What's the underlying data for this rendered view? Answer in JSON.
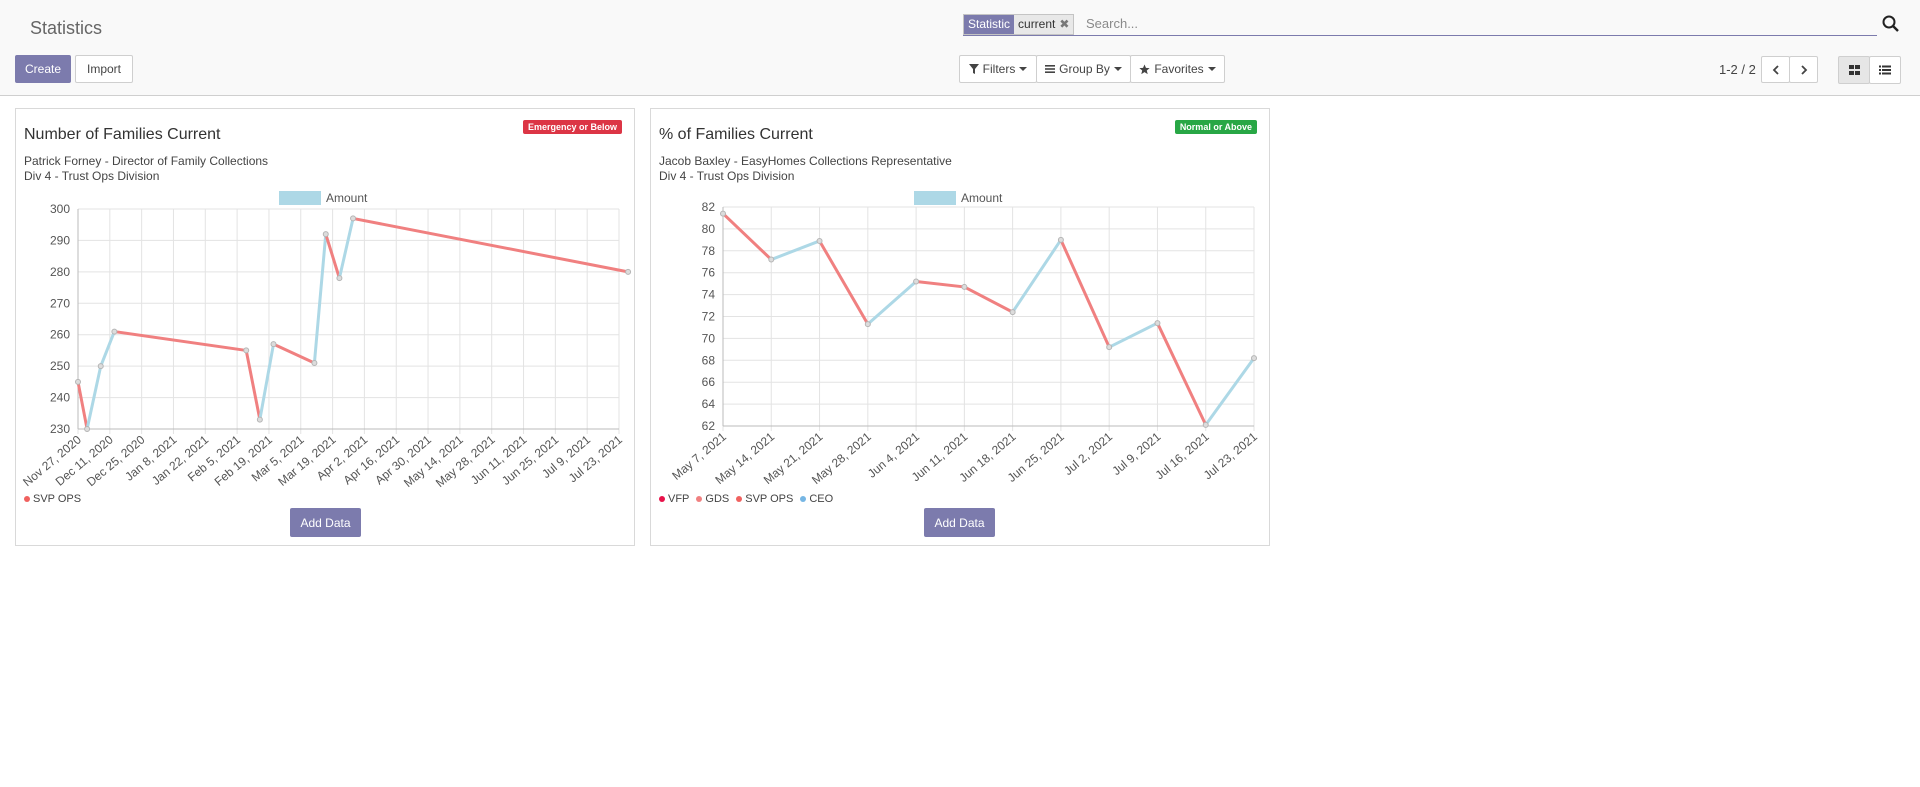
{
  "page": {
    "title": "Statistics"
  },
  "search": {
    "facet_label": "Statistic",
    "facet_value": "current",
    "placeholder": "Search..."
  },
  "toolbar": {
    "create": "Create",
    "import": "Import",
    "filters": "Filters",
    "group_by": "Group By",
    "favorites": "Favorites"
  },
  "pager": {
    "text": "1-2 / 2"
  },
  "colors": {
    "accent": "#7c7bad",
    "red_line": "#f08080",
    "blue_line": "#add8e6",
    "danger": "#dc3545",
    "success": "#28a745"
  },
  "cards": [
    {
      "title": "Number of Families Current",
      "person": "Patrick Forney - Director of Family Collections",
      "division": "Div 4 - Trust Ops Division",
      "badge": "Emergency or Below",
      "badge_color": "#dc3545",
      "legend_top": "Amount",
      "bottom_legend": [
        {
          "name": "SVP OPS",
          "color": "#f0615f"
        }
      ],
      "add_button": "Add Data"
    },
    {
      "title": "% of Families Current",
      "person": "Jacob Baxley - EasyHomes Collections Representative",
      "division": "Div 4 - Trust Ops Division",
      "badge": "Normal or Above",
      "badge_color": "#28a745",
      "legend_top": "Amount",
      "bottom_legend": [
        {
          "name": "VFP",
          "color": "#e8124a"
        },
        {
          "name": "GDS",
          "color": "#f08080"
        },
        {
          "name": "SVP OPS",
          "color": "#f0615f"
        },
        {
          "name": "CEO",
          "color": "#76b6e4"
        }
      ],
      "add_button": "Add Data"
    }
  ],
  "chart_data": [
    {
      "type": "line",
      "legend": [
        "Amount"
      ],
      "ylim": [
        230,
        300
      ],
      "yticks": [
        "230",
        "240",
        "250",
        "260",
        "270",
        "280",
        "290",
        "300"
      ],
      "xticks": [
        "Nov 27, 2020",
        "Dec 11, 2020",
        "Dec 25, 2020",
        "Jan 8, 2021",
        "Jan 22, 2021",
        "Feb 5, 2021",
        "Feb 19, 2021",
        "Mar 5, 2021",
        "Mar 19, 2021",
        "Apr 2, 2021",
        "Apr 16, 2021",
        "Apr 30, 2021",
        "May 14, 2021",
        "May 28, 2021",
        "Jun 11, 2021",
        "Jun 25, 2021",
        "Jul 9, 2021",
        "Jul 23, 2021"
      ],
      "grid": true,
      "points": [
        {
          "x": "2020-11-27",
          "y": 245
        },
        {
          "x": "2020-12-01",
          "y": 230
        },
        {
          "x": "2020-12-07",
          "y": 250
        },
        {
          "x": "2020-12-13",
          "y": 261
        },
        {
          "x": "2021-02-09",
          "y": 255
        },
        {
          "x": "2021-02-15",
          "y": 233
        },
        {
          "x": "2021-02-21",
          "y": 257
        },
        {
          "x": "2021-03-11",
          "y": 251
        },
        {
          "x": "2021-03-16",
          "y": 292
        },
        {
          "x": "2021-03-22",
          "y": 278
        },
        {
          "x": "2021-03-28",
          "y": 297
        },
        {
          "x": "2021-07-27",
          "y": 280
        }
      ],
      "segment_colors": [
        "red",
        "blue",
        "blue",
        "red",
        "red",
        "blue",
        "red",
        "blue",
        "red",
        "blue",
        "red"
      ]
    },
    {
      "type": "line",
      "legend": [
        "Amount"
      ],
      "ylim": [
        62,
        82
      ],
      "yticks": [
        "62",
        "64",
        "66",
        "68",
        "70",
        "72",
        "74",
        "76",
        "78",
        "80",
        "82"
      ],
      "xticks": [
        "May 7, 2021",
        "May 14, 2021",
        "May 21, 2021",
        "May 28, 2021",
        "Jun 4, 2021",
        "Jun 11, 2021",
        "Jun 18, 2021",
        "Jun 25, 2021",
        "Jul 2, 2021",
        "Jul 9, 2021",
        "Jul 16, 2021",
        "Jul 23, 2021"
      ],
      "grid": true,
      "points": [
        {
          "x": "2021-05-07",
          "y": 81.4
        },
        {
          "x": "2021-05-14",
          "y": 77.2
        },
        {
          "x": "2021-05-21",
          "y": 78.9
        },
        {
          "x": "2021-05-28",
          "y": 71.3
        },
        {
          "x": "2021-06-04",
          "y": 75.2
        },
        {
          "x": "2021-06-11",
          "y": 74.7
        },
        {
          "x": "2021-06-18",
          "y": 72.4
        },
        {
          "x": "2021-06-25",
          "y": 79.0
        },
        {
          "x": "2021-07-02",
          "y": 69.2
        },
        {
          "x": "2021-07-09",
          "y": 71.4
        },
        {
          "x": "2021-07-16",
          "y": 62.1
        },
        {
          "x": "2021-07-23",
          "y": 68.2
        }
      ],
      "segment_colors": [
        "red",
        "blue",
        "red",
        "blue",
        "red",
        "red",
        "blue",
        "red",
        "blue",
        "red",
        "blue"
      ]
    }
  ]
}
